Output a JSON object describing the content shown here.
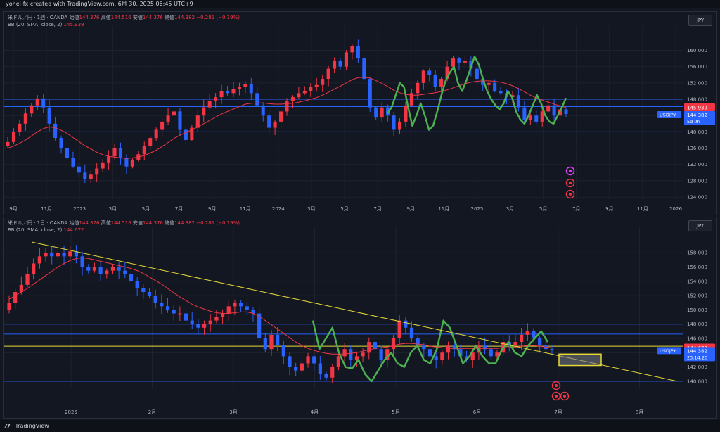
{
  "header": {
    "text": "yohei-fx created with TradingView.com, 6月 30, 2025 06:45 UTC+9"
  },
  "footer": {
    "brand": "TradingView"
  },
  "colors": {
    "up": "#f23645",
    "down": "#2962ff",
    "bb": "#f23645",
    "hline": "#2962ff",
    "wave": "#4caf50",
    "trend": "#e6d835",
    "box": "#e6d835",
    "bg": "#131722",
    "grid": "#1e222d"
  },
  "panes": [
    {
      "legend": {
        "symbol": "米ドル／円 · 1週 · OANDA",
        "open_label": "始値",
        "open": "144.376",
        "high_label": "高値",
        "high": "144.516",
        "low_label": "安値",
        "low": "144.376",
        "close_label": "終値",
        "close": "144.382",
        "change": "−0.281 (−0.19%)",
        "bb_label": "BB (20, SMA, close, 2)",
        "bb_value": "145.939"
      },
      "currency": "JPY",
      "price_tag": {
        "bb": "145.939",
        "symbol": "USDJPY",
        "price": "144.382",
        "countdown": "5d 0h"
      },
      "icons": [
        "lightning-icon",
        "event-icon",
        "flag-us-icon"
      ]
    },
    {
      "legend": {
        "symbol": "米ドル／円 · 1日 · OANDA",
        "open_label": "始値",
        "open": "144.376",
        "high_label": "高値",
        "high": "144.516",
        "low_label": "安値",
        "low": "144.376",
        "close_label": "終値",
        "close": "144.382",
        "change": "−0.281 (−0.19%)",
        "bb_label": "BB (20, SMA, close, 2)",
        "bb_value": "144.672"
      },
      "currency": "JPY",
      "price_tag": {
        "bb": "144.672",
        "symbol": "USDJPY",
        "price": "144.382",
        "countdown": "23:14:20"
      },
      "icons": [
        "event-icon",
        "event-icon",
        "flag-us-icon"
      ]
    }
  ],
  "chart_data": [
    {
      "type": "candlestick",
      "symbol": "USDJPY",
      "timeframe": "1週",
      "y_ticks": [
        124,
        128,
        132,
        136,
        140,
        144,
        148,
        152,
        156,
        160
      ],
      "y_tick_labels": [
        "124.000",
        "128.000",
        "132.000",
        "136.000",
        "140.000",
        "",
        "148.000",
        "152.000",
        "156.000",
        "160.000"
      ],
      "ylim": [
        123.5,
        162.5
      ],
      "x_labels": [
        "9月",
        "11月",
        "2023",
        "3月",
        "5月",
        "7月",
        "9月",
        "11月",
        "2024",
        "3月",
        "5月",
        "7月",
        "9月",
        "11月",
        "2025",
        "3月",
        "5月",
        "7月",
        "9月",
        "11月",
        "2026"
      ],
      "close_path": [
        137.5,
        140,
        142,
        144.5,
        146.5,
        148.2,
        146,
        142,
        138.5,
        136,
        133.5,
        131.5,
        130,
        128.5,
        129.5,
        131,
        132.5,
        134,
        136,
        133.5,
        131.5,
        133,
        134.5,
        136.5,
        138.5,
        140.5,
        142.5,
        144,
        145,
        140.5,
        138,
        141,
        144,
        146,
        147.5,
        148.5,
        150,
        149.5,
        150.5,
        151,
        151.8,
        149.5,
        146.5,
        144,
        141,
        142.5,
        145,
        147.5,
        148.5,
        149.5,
        150,
        151,
        151.5,
        153,
        155.5,
        157.5,
        156,
        159.5,
        161,
        158,
        153,
        146,
        143.5,
        146,
        144,
        140.5,
        142.5,
        146.5,
        149.5,
        152,
        155,
        154,
        151,
        153,
        156,
        158,
        157,
        157.5,
        155.5,
        153,
        151.5,
        152,
        150,
        149.5,
        148.5,
        149,
        146,
        143,
        144,
        142.5,
        145,
        146.5,
        144,
        145.5,
        144.38
      ],
      "bb_basis": [
        136,
        136.5,
        137.2,
        138,
        139,
        140,
        140.8,
        141.2,
        141,
        140.4,
        139.6,
        138.6,
        137.6,
        136.6,
        135.8,
        135,
        134.4,
        134,
        133.8,
        133.6,
        133.5,
        133.6,
        133.8,
        134.2,
        134.8,
        135.5,
        136.4,
        137.4,
        138.4,
        139.2,
        139.8,
        140.5,
        141.2,
        142,
        142.8,
        143.6,
        144.4,
        145,
        145.6,
        146.2,
        146.8,
        147,
        147.1,
        147.1,
        146.9,
        146.8,
        146.8,
        146.9,
        147,
        147.3,
        147.6,
        148,
        148.4,
        149,
        149.7,
        150.5,
        151.2,
        152,
        152.8,
        153.3,
        153.4,
        153.2,
        152.6,
        151.9,
        151.1,
        150.2,
        149.6,
        149.2,
        149,
        149,
        149.2,
        149.4,
        149.6,
        149.9,
        150.3,
        150.8,
        151.3,
        151.8,
        152.2,
        152.4,
        152.5,
        152.5,
        152.4,
        152.2,
        151.8,
        151.3,
        150.6,
        149.8,
        149,
        148.3,
        147.8,
        147.3,
        146.8,
        146.4,
        145.94
      ],
      "horizontal_lines": [
        148.0,
        146.2,
        140.0
      ],
      "wave_path": [
        144.5,
        146,
        149,
        152,
        151,
        146,
        141.5,
        144,
        147,
        144,
        140.5,
        141.5,
        145,
        149,
        152.5,
        154.5,
        156,
        152,
        150,
        152.5,
        155.5,
        158.5,
        156.5,
        153,
        150,
        148,
        146.5,
        145.5,
        147,
        150,
        148.5,
        145,
        143,
        142,
        144,
        146.5,
        149,
        147,
        144,
        142.5,
        142,
        144,
        146,
        148.3
      ]
    },
    {
      "type": "candlestick",
      "symbol": "USDJPY",
      "timeframe": "1日",
      "y_ticks": [
        140,
        142,
        144,
        146,
        148,
        150,
        152,
        154,
        156,
        158
      ],
      "y_tick_labels": [
        "140.000",
        "142.000",
        "",
        "146.000",
        "148.000",
        "150.000",
        "152.000",
        "154.000",
        "156.000",
        "158.000"
      ],
      "ylim": [
        139,
        159.7
      ],
      "x_labels": [
        "2025",
        "2月",
        "3月",
        "4月",
        "5月",
        "6月",
        "7月",
        "8月"
      ],
      "close_path": [
        151,
        152.5,
        153.5,
        155,
        156.5,
        157.5,
        158,
        157.5,
        158,
        157.5,
        158.2,
        157.5,
        156,
        155.5,
        156,
        155,
        155.5,
        156,
        155.5,
        155,
        154,
        153,
        152.5,
        152,
        151,
        150.5,
        150,
        149.5,
        149.5,
        148.5,
        148,
        147.5,
        148,
        148.5,
        149,
        149.5,
        150.5,
        151,
        150.5,
        150,
        149.5,
        146,
        144.5,
        146.5,
        145,
        143.5,
        142,
        141.5,
        142.5,
        143.5,
        142.5,
        141,
        140.5,
        142,
        143.5,
        144.5,
        143,
        143.5,
        144,
        145.5,
        144.5,
        143,
        144.5,
        146,
        148.5,
        147.5,
        146,
        145,
        144.5,
        143.5,
        143,
        144,
        145,
        144.5,
        143.5,
        143,
        144,
        145,
        144.5,
        143.5,
        144,
        145.5,
        145,
        145.5,
        146.5,
        147,
        146,
        145,
        144.5,
        144.38
      ],
      "bb_basis": [
        151.5,
        152,
        152.5,
        153,
        153.6,
        154.2,
        154.8,
        155.4,
        156,
        156.5,
        156.9,
        157.2,
        157.3,
        157.2,
        157,
        156.8,
        156.6,
        156.4,
        156.2,
        156,
        155.8,
        155.5,
        155.1,
        154.6,
        154.1,
        153.6,
        153,
        152.4,
        151.8,
        151.3,
        150.8,
        150.4,
        150.1,
        149.8,
        149.6,
        149.5,
        149.5,
        149.6,
        149.7,
        149.7,
        149.5,
        149.1,
        148.5,
        147.9,
        147.3,
        146.7,
        146.1,
        145.5,
        145,
        144.6,
        144.3,
        144.1,
        143.9,
        143.8,
        143.8,
        143.8,
        143.9,
        144,
        144.2,
        144.4,
        144.6,
        144.7,
        144.8,
        145,
        145.2,
        145.3,
        145.3,
        145.2,
        145.1,
        144.9,
        144.8,
        144.7,
        144.6,
        144.6,
        144.6,
        144.6,
        144.6,
        144.6,
        144.6,
        144.6,
        144.6,
        144.7,
        144.7,
        144.8,
        144.9,
        145,
        145,
        144.9,
        144.8,
        144.67
      ],
      "horizontal_lines": [
        148.0,
        146.6,
        144.9,
        140.0
      ],
      "trendline": [
        [
          0,
          159.5
        ],
        [
          1,
          140.0
        ]
      ],
      "target_box": {
        "price_top": 143.8,
        "price_bottom": 142.2
      },
      "wave_path": [
        148.5,
        144.5,
        146,
        147.5,
        144,
        142,
        141.8,
        143,
        141,
        140,
        141.5,
        143,
        144,
        142.5,
        142,
        144,
        145,
        143,
        142.5,
        144.5,
        148.5,
        147.5,
        145,
        142.5,
        143.5,
        145,
        143.5,
        142.5,
        142.5,
        144.5,
        145.5,
        144,
        143.5,
        145,
        146,
        147,
        145.5
      ]
    }
  ]
}
